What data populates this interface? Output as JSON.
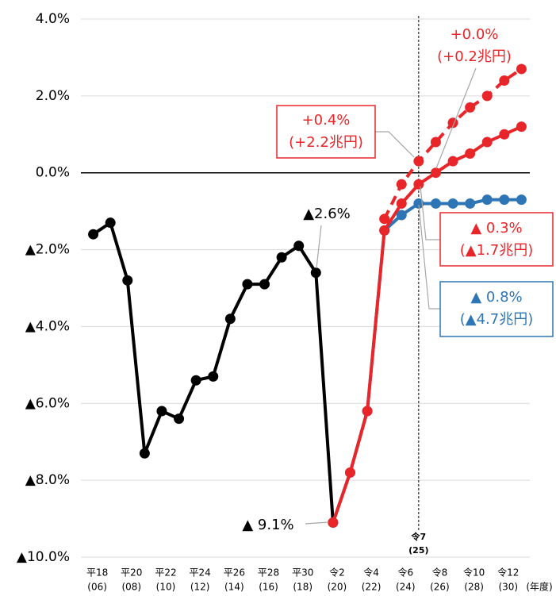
{
  "chart_data": {
    "type": "line",
    "x": [
      2006,
      2007,
      2008,
      2009,
      2010,
      2011,
      2012,
      2013,
      2014,
      2015,
      2016,
      2017,
      2018,
      2019,
      2020,
      2021,
      2022,
      2023,
      2024,
      2025,
      2026,
      2027,
      2028,
      2029,
      2030,
      2031
    ],
    "series": [
      {
        "color": "#000000",
        "dashed": false,
        "values": [
          -1.6,
          -1.3,
          -2.8,
          -7.3,
          -6.2,
          -6.4,
          -5.4,
          -5.3,
          -3.8,
          -2.9,
          -2.9,
          -2.2,
          -1.9,
          -2.6,
          -9.1,
          null,
          null,
          null,
          null,
          null,
          null,
          null,
          null,
          null,
          null,
          null
        ]
      },
      {
        "color": "#2e75b6",
        "dashed": false,
        "values": [
          null,
          null,
          null,
          null,
          null,
          null,
          null,
          null,
          null,
          null,
          null,
          null,
          null,
          null,
          -9.1,
          -7.8,
          -6.2,
          -1.5,
          -1.1,
          -0.8,
          -0.8,
          -0.8,
          -0.8,
          -0.7,
          -0.7,
          -0.7
        ]
      },
      {
        "color": "#e8262a",
        "dashed": false,
        "values": [
          null,
          null,
          null,
          null,
          null,
          null,
          null,
          null,
          null,
          null,
          null,
          null,
          null,
          null,
          -9.1,
          -7.8,
          -6.2,
          -1.5,
          -0.8,
          -0.3,
          0.0,
          0.3,
          0.5,
          0.8,
          1.0,
          1.2
        ]
      },
      {
        "color": "#e8262a",
        "dashed": true,
        "values": [
          null,
          null,
          null,
          null,
          null,
          null,
          null,
          null,
          null,
          null,
          null,
          null,
          null,
          null,
          null,
          null,
          null,
          -1.2,
          -0.3,
          0.3,
          0.8,
          1.3,
          1.7,
          2.0,
          2.4,
          2.7
        ]
      }
    ],
    "xlim": [
      2005,
      2032
    ],
    "xticks": [
      {
        "value": 2006,
        "label": "平18",
        "sublabel": "(06)"
      },
      {
        "value": 2008,
        "label": "平20",
        "sublabel": "(08)"
      },
      {
        "value": 2010,
        "label": "平22",
        "sublabel": "(10)"
      },
      {
        "value": 2012,
        "label": "平24",
        "sublabel": "(12)"
      },
      {
        "value": 2014,
        "label": "平26",
        "sublabel": "(14)"
      },
      {
        "value": 2016,
        "label": "平28",
        "sublabel": "(16)"
      },
      {
        "value": 2018,
        "label": "平30",
        "sublabel": "(18)"
      },
      {
        "value": 2020,
        "label": "令2",
        "sublabel": "(20)"
      },
      {
        "value": 2022,
        "label": "令4",
        "sublabel": "(22)"
      },
      {
        "value": 2024,
        "label": "令6",
        "sublabel": "(24)"
      },
      {
        "value": 2026,
        "label": "令8",
        "sublabel": "(26)"
      },
      {
        "value": 2028,
        "label": "令10",
        "sublabel": "(28)"
      },
      {
        "value": 2030,
        "label": "令12",
        "sublabel": "(30)"
      }
    ],
    "x_unit": "(年度)",
    "ylim": [
      -10,
      4
    ],
    "yticks": [
      {
        "value": 4,
        "label": "4.0%"
      },
      {
        "value": 2,
        "label": "2.0%"
      },
      {
        "value": 0,
        "label": "0.0%"
      },
      {
        "value": -2,
        "label": "▲2.0%"
      },
      {
        "value": -4,
        "label": "▲4.0%"
      },
      {
        "value": -6,
        "label": "▲6.0%"
      },
      {
        "value": -8,
        "label": "▲8.0%"
      },
      {
        "value": -10,
        "label": "▲10.0%"
      }
    ],
    "grid": true,
    "reference_line": {
      "value": 2025,
      "label": [
        "令7",
        "(25)"
      ]
    },
    "annotations": [
      {
        "lines": [
          "▲2.6%"
        ],
        "color": "#000000"
      },
      {
        "lines": [
          "▲ 9.1%"
        ],
        "color": "#000000"
      },
      {
        "lines": [
          "+0.4%",
          "(+2.2兆円)"
        ],
        "color": "#e8262a"
      },
      {
        "lines": [
          "+0.0%",
          "(+0.2兆円)"
        ],
        "color": "#e8262a"
      },
      {
        "lines": [
          "▲ 0.3%",
          "(▲1.7兆円)"
        ],
        "color": "#e8262a"
      },
      {
        "lines": [
          "▲ 0.8%",
          "(▲4.7兆円)"
        ],
        "color": "#2e75b6"
      }
    ]
  }
}
